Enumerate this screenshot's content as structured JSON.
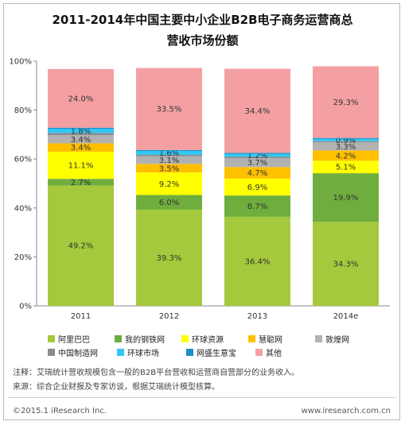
{
  "chart_data": {
    "type": "bar",
    "stacked": true,
    "title_line1": "2011-2014年中国主要中小企业B2B电子商务运营商总",
    "title_line2": "营收市场份额",
    "categories": [
      "2011",
      "2012",
      "2013",
      "2014e"
    ],
    "y_ticks": [
      "0%",
      "20%",
      "40%",
      "60%",
      "80%",
      "100%"
    ],
    "ylim": [
      0,
      100
    ],
    "series": [
      {
        "name": "阿里巴巴",
        "color": "#a5c93c",
        "values": [
          49.2,
          39.3,
          36.4,
          34.3
        ],
        "labels": [
          "49.2%",
          "39.3%",
          "36.4%",
          "34.3%"
        ]
      },
      {
        "name": "我的钢铁网",
        "color": "#6fae3e",
        "values": [
          2.7,
          6.0,
          8.7,
          19.9
        ],
        "labels": [
          "2.7%",
          "6.0%",
          "8.7%",
          "19.9%"
        ]
      },
      {
        "name": "环球资源",
        "color": "#ffff00",
        "values": [
          11.1,
          9.2,
          6.9,
          5.1
        ],
        "labels": [
          "11.1%",
          "9.2%",
          "6.9%",
          "5.1%"
        ]
      },
      {
        "name": "慧聪网",
        "color": "#ffc000",
        "values": [
          3.4,
          3.5,
          4.7,
          4.2
        ],
        "labels": [
          "3.4%",
          "3.5%",
          "4.7%",
          "4.2%"
        ]
      },
      {
        "name": "敦煌网",
        "color": "#b2b2b2",
        "values": [
          3.4,
          3.1,
          3.7,
          3.3
        ],
        "labels": [
          "3.4%",
          "3.1%",
          "3.7%",
          "3.3%"
        ]
      },
      {
        "name": "中国制造网",
        "color": "#8c8c8c",
        "values": [
          0.8,
          0.6,
          0.5,
          0.5
        ],
        "labels": [
          "",
          "",
          "",
          ""
        ]
      },
      {
        "name": "环球市场",
        "color": "#33c6f2",
        "values": [
          1.8,
          1.6,
          1.2,
          0.9
        ],
        "labels": [
          "1.8%",
          "1.6%",
          "1.2%",
          "0.9%"
        ]
      },
      {
        "name": "网盛生意宝",
        "color": "#1a8fc9",
        "values": [
          0.4,
          0.4,
          0.4,
          0.4
        ],
        "labels": [
          "",
          "",
          "",
          ""
        ]
      },
      {
        "name": "其他",
        "color": "#f4a0a3",
        "values": [
          24.0,
          33.5,
          34.4,
          29.3
        ],
        "labels": [
          "24.0%",
          "33.5%",
          "34.4%",
          "29.3%"
        ]
      }
    ]
  },
  "legend": {
    "row1": [
      {
        "label": "阿里巴巴",
        "color": "#a5c93c"
      },
      {
        "label": "我的钢铁网",
        "color": "#6fae3e"
      },
      {
        "label": "环球资源",
        "color": "#ffff00"
      },
      {
        "label": "慧聪网",
        "color": "#ffc000"
      },
      {
        "label": "敦煌网",
        "color": "#b2b2b2"
      }
    ],
    "row2": [
      {
        "label": "中国制造网",
        "color": "#8c8c8c"
      },
      {
        "label": "环球市场",
        "color": "#33c6f2"
      },
      {
        "label": "网盛生意宝",
        "color": "#1a8fc9"
      },
      {
        "label": "其他",
        "color": "#f4a0a3"
      }
    ]
  },
  "notes": {
    "note": "注释：艾瑞统计营收规模包含一般的B2B平台营收和运营商自营部分的业务收入。",
    "source": "来源：综合企业财报及专家访谈，根据艾瑞统计模型核算。"
  },
  "footer": {
    "copyright": "©2015.1 iResearch Inc.",
    "website": "www.iresearch.com.cn"
  }
}
